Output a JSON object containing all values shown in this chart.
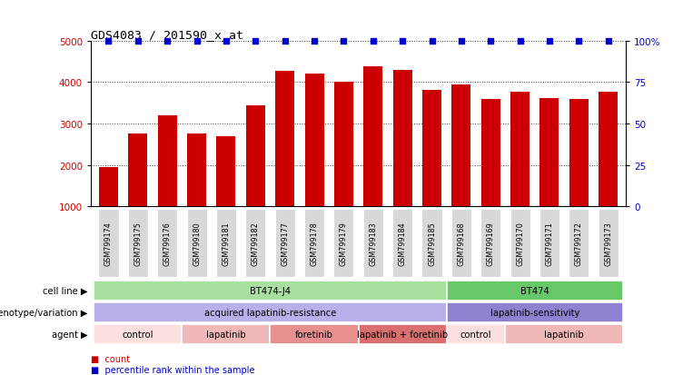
{
  "title": "GDS4083 / 201590_x_at",
  "samples": [
    "GSM799174",
    "GSM799175",
    "GSM799176",
    "GSM799180",
    "GSM799181",
    "GSM799182",
    "GSM799177",
    "GSM799178",
    "GSM799179",
    "GSM799183",
    "GSM799184",
    "GSM799185",
    "GSM799168",
    "GSM799169",
    "GSM799170",
    "GSM799171",
    "GSM799172",
    "GSM799173"
  ],
  "counts": [
    1950,
    2750,
    3200,
    2750,
    2700,
    3450,
    4280,
    4200,
    4000,
    4380,
    4300,
    3820,
    3950,
    3600,
    3780,
    3620,
    3600,
    3780
  ],
  "bar_color": "#cc0000",
  "dot_color": "#0000cc",
  "ylim_left": [
    1000,
    5000
  ],
  "ylim_right": [
    0,
    100
  ],
  "yticks_left": [
    1000,
    2000,
    3000,
    4000,
    5000
  ],
  "yticks_right": [
    0,
    25,
    50,
    75,
    100
  ],
  "ytick_right_labels": [
    "0",
    "25",
    "50",
    "75",
    "100%"
  ],
  "cell_line_groups": [
    {
      "label": "BT474-J4",
      "start": 0,
      "end": 11,
      "color": "#a8e0a0"
    },
    {
      "label": "BT474",
      "start": 12,
      "end": 17,
      "color": "#66c866"
    }
  ],
  "genotype_groups": [
    {
      "label": "acquired lapatinib-resistance",
      "start": 0,
      "end": 11,
      "color": "#b8b0e8"
    },
    {
      "label": "lapatinib-sensitivity",
      "start": 12,
      "end": 17,
      "color": "#9080d0"
    }
  ],
  "agent_groups": [
    {
      "label": "control",
      "start": 0,
      "end": 2,
      "color": "#fce0e0"
    },
    {
      "label": "lapatinib",
      "start": 3,
      "end": 5,
      "color": "#f0b8b8"
    },
    {
      "label": "foretinib",
      "start": 6,
      "end": 8,
      "color": "#e89090"
    },
    {
      "label": "lapatinib + foretinib",
      "start": 9,
      "end": 11,
      "color": "#d87070"
    },
    {
      "label": "control",
      "start": 12,
      "end": 13,
      "color": "#fce0e0"
    },
    {
      "label": "lapatinib",
      "start": 14,
      "end": 17,
      "color": "#f0b8b8"
    }
  ],
  "row_labels": [
    "cell line",
    "genotype/variation",
    "agent"
  ],
  "legend_items": [
    {
      "label": "count",
      "color": "#cc0000"
    },
    {
      "label": "percentile rank within the sample",
      "color": "#0000cc"
    }
  ],
  "xtick_bg": "#d8d8d8",
  "title_fontsize": 9.5,
  "bar_width": 0.65
}
